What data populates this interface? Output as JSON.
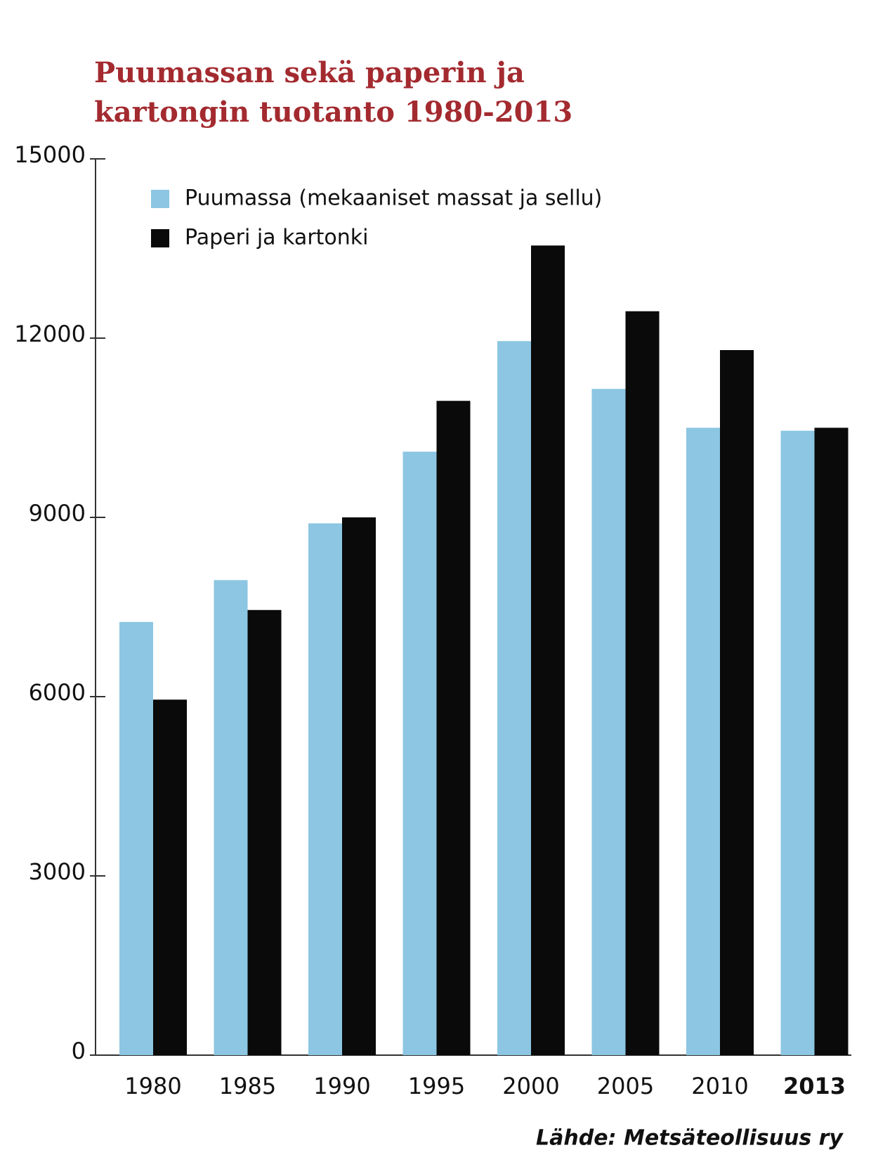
{
  "chart_data": {
    "type": "bar",
    "title": [
      "Puumassan sekä paperin ja",
      "kartongin tuotanto 1980-2013"
    ],
    "categories": [
      "1980",
      "1985",
      "1990",
      "1995",
      "2000",
      "2005",
      "2010",
      "2013"
    ],
    "series": [
      {
        "name": "Puumassa (mekaaniset massat ja sellu)",
        "color": "#8cc6e2",
        "values": [
          7250,
          7950,
          8900,
          10100,
          11950,
          11150,
          10500,
          10450
        ]
      },
      {
        "name": "Paperi ja kartonki",
        "color": "#0a0a0a",
        "values": [
          5950,
          7450,
          9000,
          10950,
          13550,
          12450,
          11800,
          10500
        ]
      }
    ],
    "ylim": [
      0,
      15000
    ],
    "yticks": [
      0,
      3000,
      6000,
      9000,
      12000,
      15000
    ],
    "legend": "top-left",
    "source": "Lähde: Metsäteollisuus ry"
  }
}
